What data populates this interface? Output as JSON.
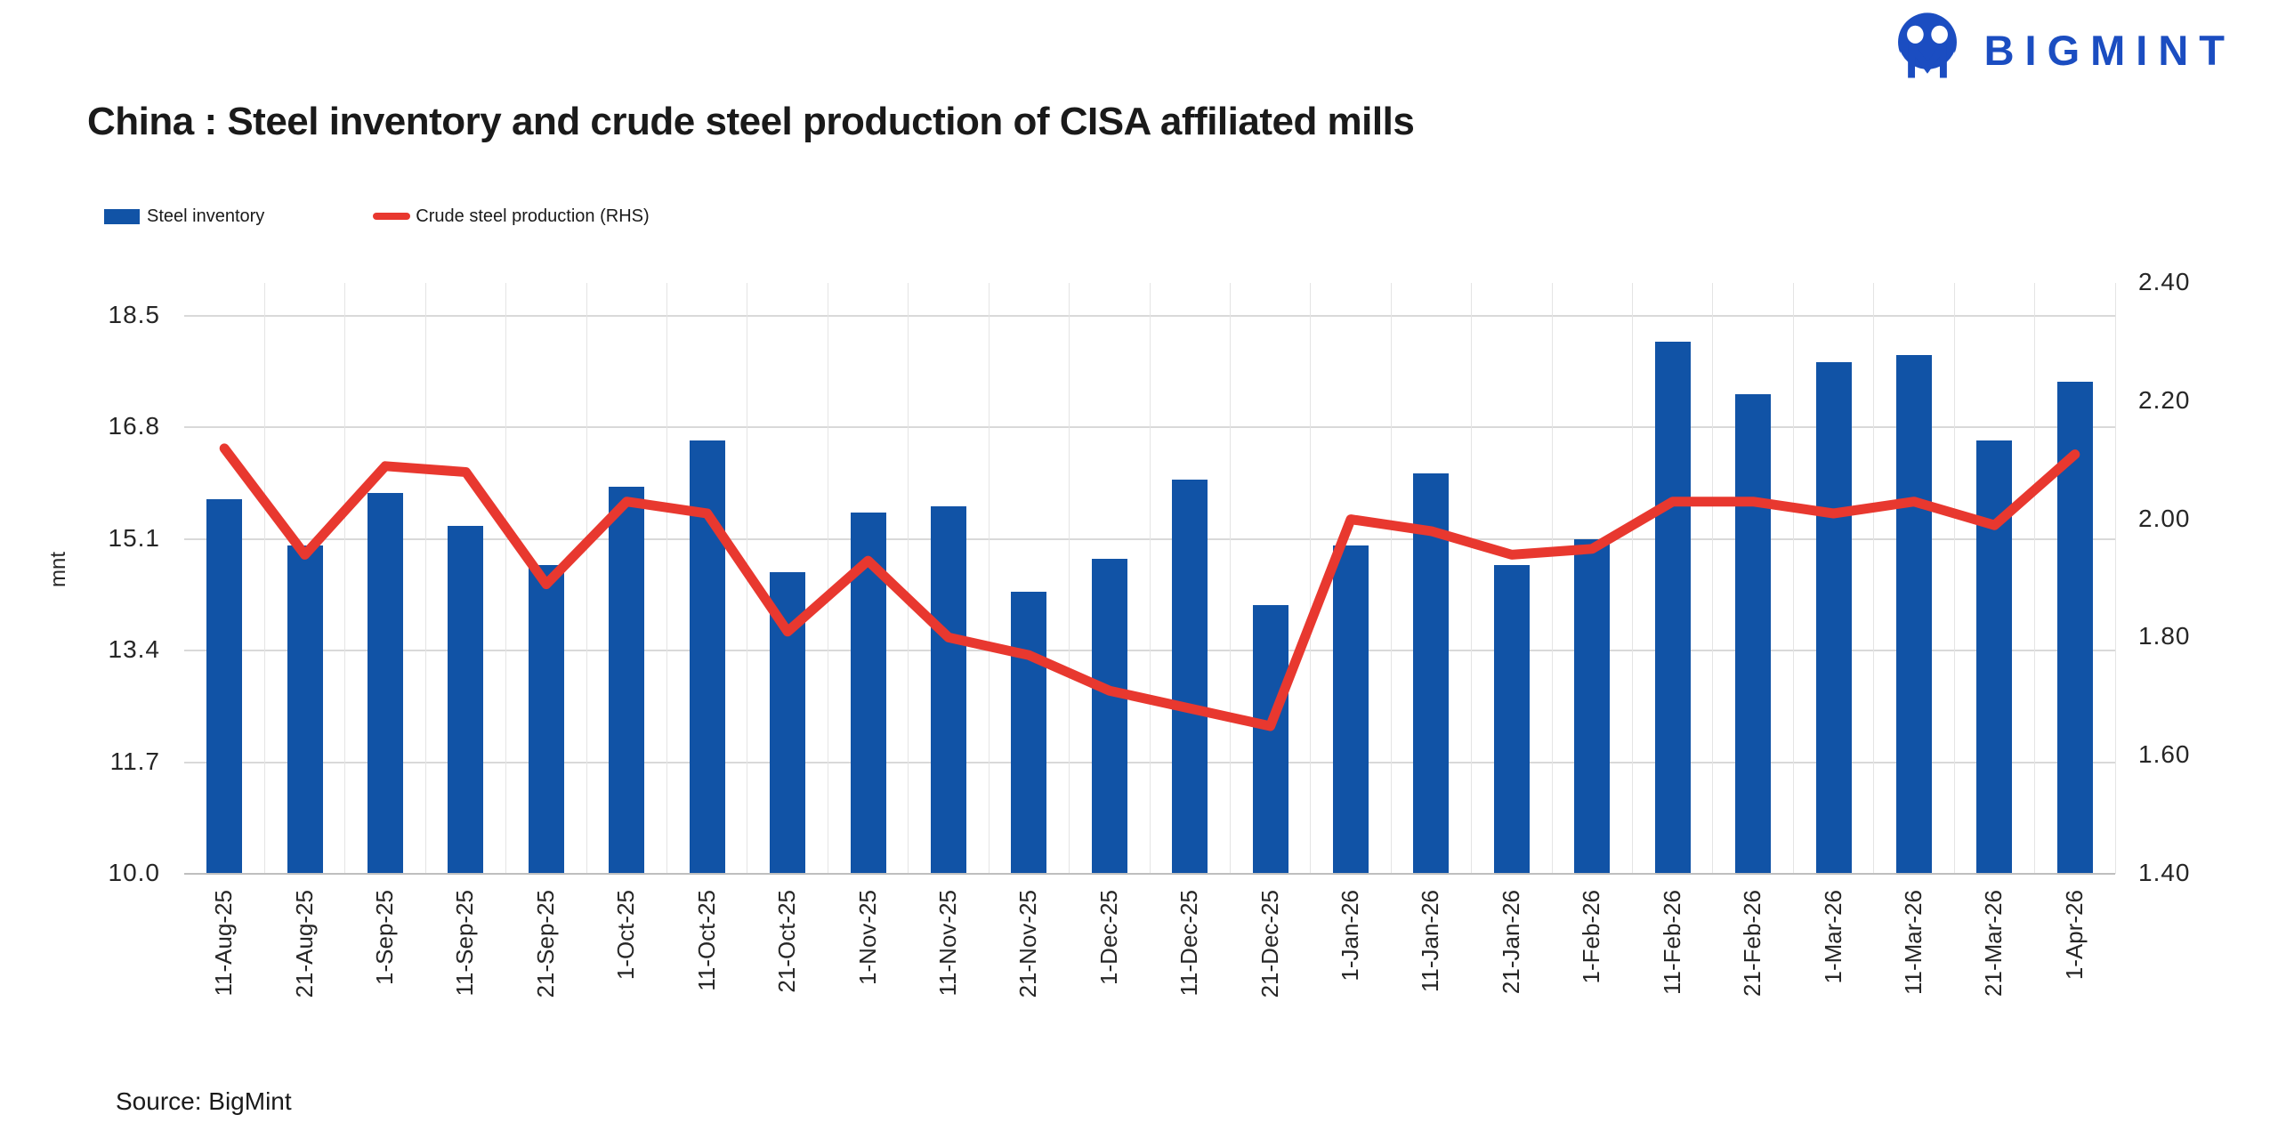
{
  "title": "China : Steel inventory and crude steel production of CISA affiliated mills",
  "logo": {
    "text": "BIGMINT"
  },
  "legend": {
    "items": [
      {
        "label": "Steel inventory",
        "type": "bar"
      },
      {
        "label": "Crude steel production (RHS)",
        "type": "line"
      }
    ]
  },
  "source": "Source: BigMint",
  "colors": {
    "bar": "#1153a6",
    "line": "#e8382f",
    "logo_blue": "#1b4dc1",
    "grid": "#d9d9d9",
    "vgrid": "#e4e4e4",
    "axis_line": "#bfbfbf"
  },
  "chart_data": {
    "type": "bar+line combo",
    "title": "China : Steel inventory and crude steel production of CISA affiliated mills",
    "categories": [
      "11-Aug-25",
      "21-Aug-25",
      "1-Sep-25",
      "11-Sep-25",
      "21-Sep-25",
      "1-Oct-25",
      "11-Oct-25",
      "21-Oct-25",
      "1-Nov-25",
      "11-Nov-25",
      "21-Nov-25",
      "1-Dec-25",
      "11-Dec-25",
      "21-Dec-25",
      "1-Jan-26",
      "11-Jan-26",
      "21-Jan-26",
      "1-Feb-26",
      "11-Feb-26",
      "21-Feb-26",
      "1-Mar-26",
      "11-Mar-26",
      "21-Mar-26",
      "1-Apr-26"
    ],
    "series": [
      {
        "name": "Steel inventory",
        "type": "bar",
        "axis": "left",
        "values": [
          15.7,
          15.0,
          15.8,
          15.3,
          14.7,
          15.9,
          16.6,
          14.6,
          15.5,
          15.6,
          14.3,
          14.8,
          16.0,
          14.1,
          15.0,
          16.1,
          14.7,
          15.1,
          18.1,
          17.3,
          17.8,
          17.9,
          16.6,
          17.5
        ]
      },
      {
        "name": "Crude steel production (RHS)",
        "type": "line",
        "axis": "right",
        "values": [
          2.12,
          1.94,
          2.09,
          2.08,
          1.89,
          2.03,
          2.01,
          1.81,
          1.93,
          1.8,
          1.77,
          1.71,
          1.68,
          1.65,
          2.0,
          1.98,
          1.94,
          1.95,
          2.03,
          2.03,
          2.01,
          2.03,
          1.99,
          2.11
        ]
      }
    ],
    "left_axis": {
      "label": "mnt",
      "tick_labels": [
        "18.5",
        "16.8",
        "15.1",
        "13.4",
        "11.7",
        "10.0"
      ],
      "min": 10.0,
      "max": 19.0
    },
    "right_axis": {
      "tick_labels": [
        "2.40",
        "2.20",
        "2.00",
        "1.80",
        "1.60",
        "1.40"
      ],
      "min": 1.4,
      "max": 2.4
    },
    "grid": true,
    "legend_position": "top-left"
  }
}
